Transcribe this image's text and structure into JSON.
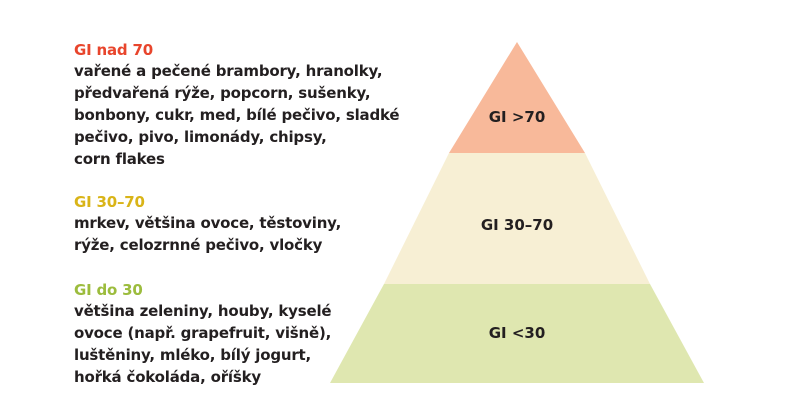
{
  "legend": {
    "high": {
      "title": "GI nad 70",
      "title_color": "#e8452c",
      "lines": [
        "vařené a pečené brambory, hranolky,",
        "předvařená rýže, popcorn, sušenky,",
        "bonbony, cukr, med, bílé pečivo, sladké",
        "pečivo, pivo, limonády, chipsy,",
        "corn flakes"
      ]
    },
    "mid": {
      "title": "GI 30–70",
      "title_color": "#d9b418",
      "lines": [
        "mrkev, většina ovoce, těstoviny,",
        "rýže, celozrnné pečivo, vločky"
      ]
    },
    "low": {
      "title": "GI do 30",
      "title_color": "#9cbc3d",
      "lines": [
        "většina zeleniny, houby, kyselé",
        "ovoce (např. grapefruit, višně),",
        "luštěniny, mléko, bílý jogurt,",
        "hořká čokoláda, oříšky"
      ]
    }
  },
  "pyramid": {
    "top": {
      "label": "GI >70",
      "color": "#f8b99a"
    },
    "middle": {
      "label": "GI 30–70",
      "color": "#f7efd4"
    },
    "bottom": {
      "label": "GI <30",
      "color": "#dfe7b0"
    }
  }
}
